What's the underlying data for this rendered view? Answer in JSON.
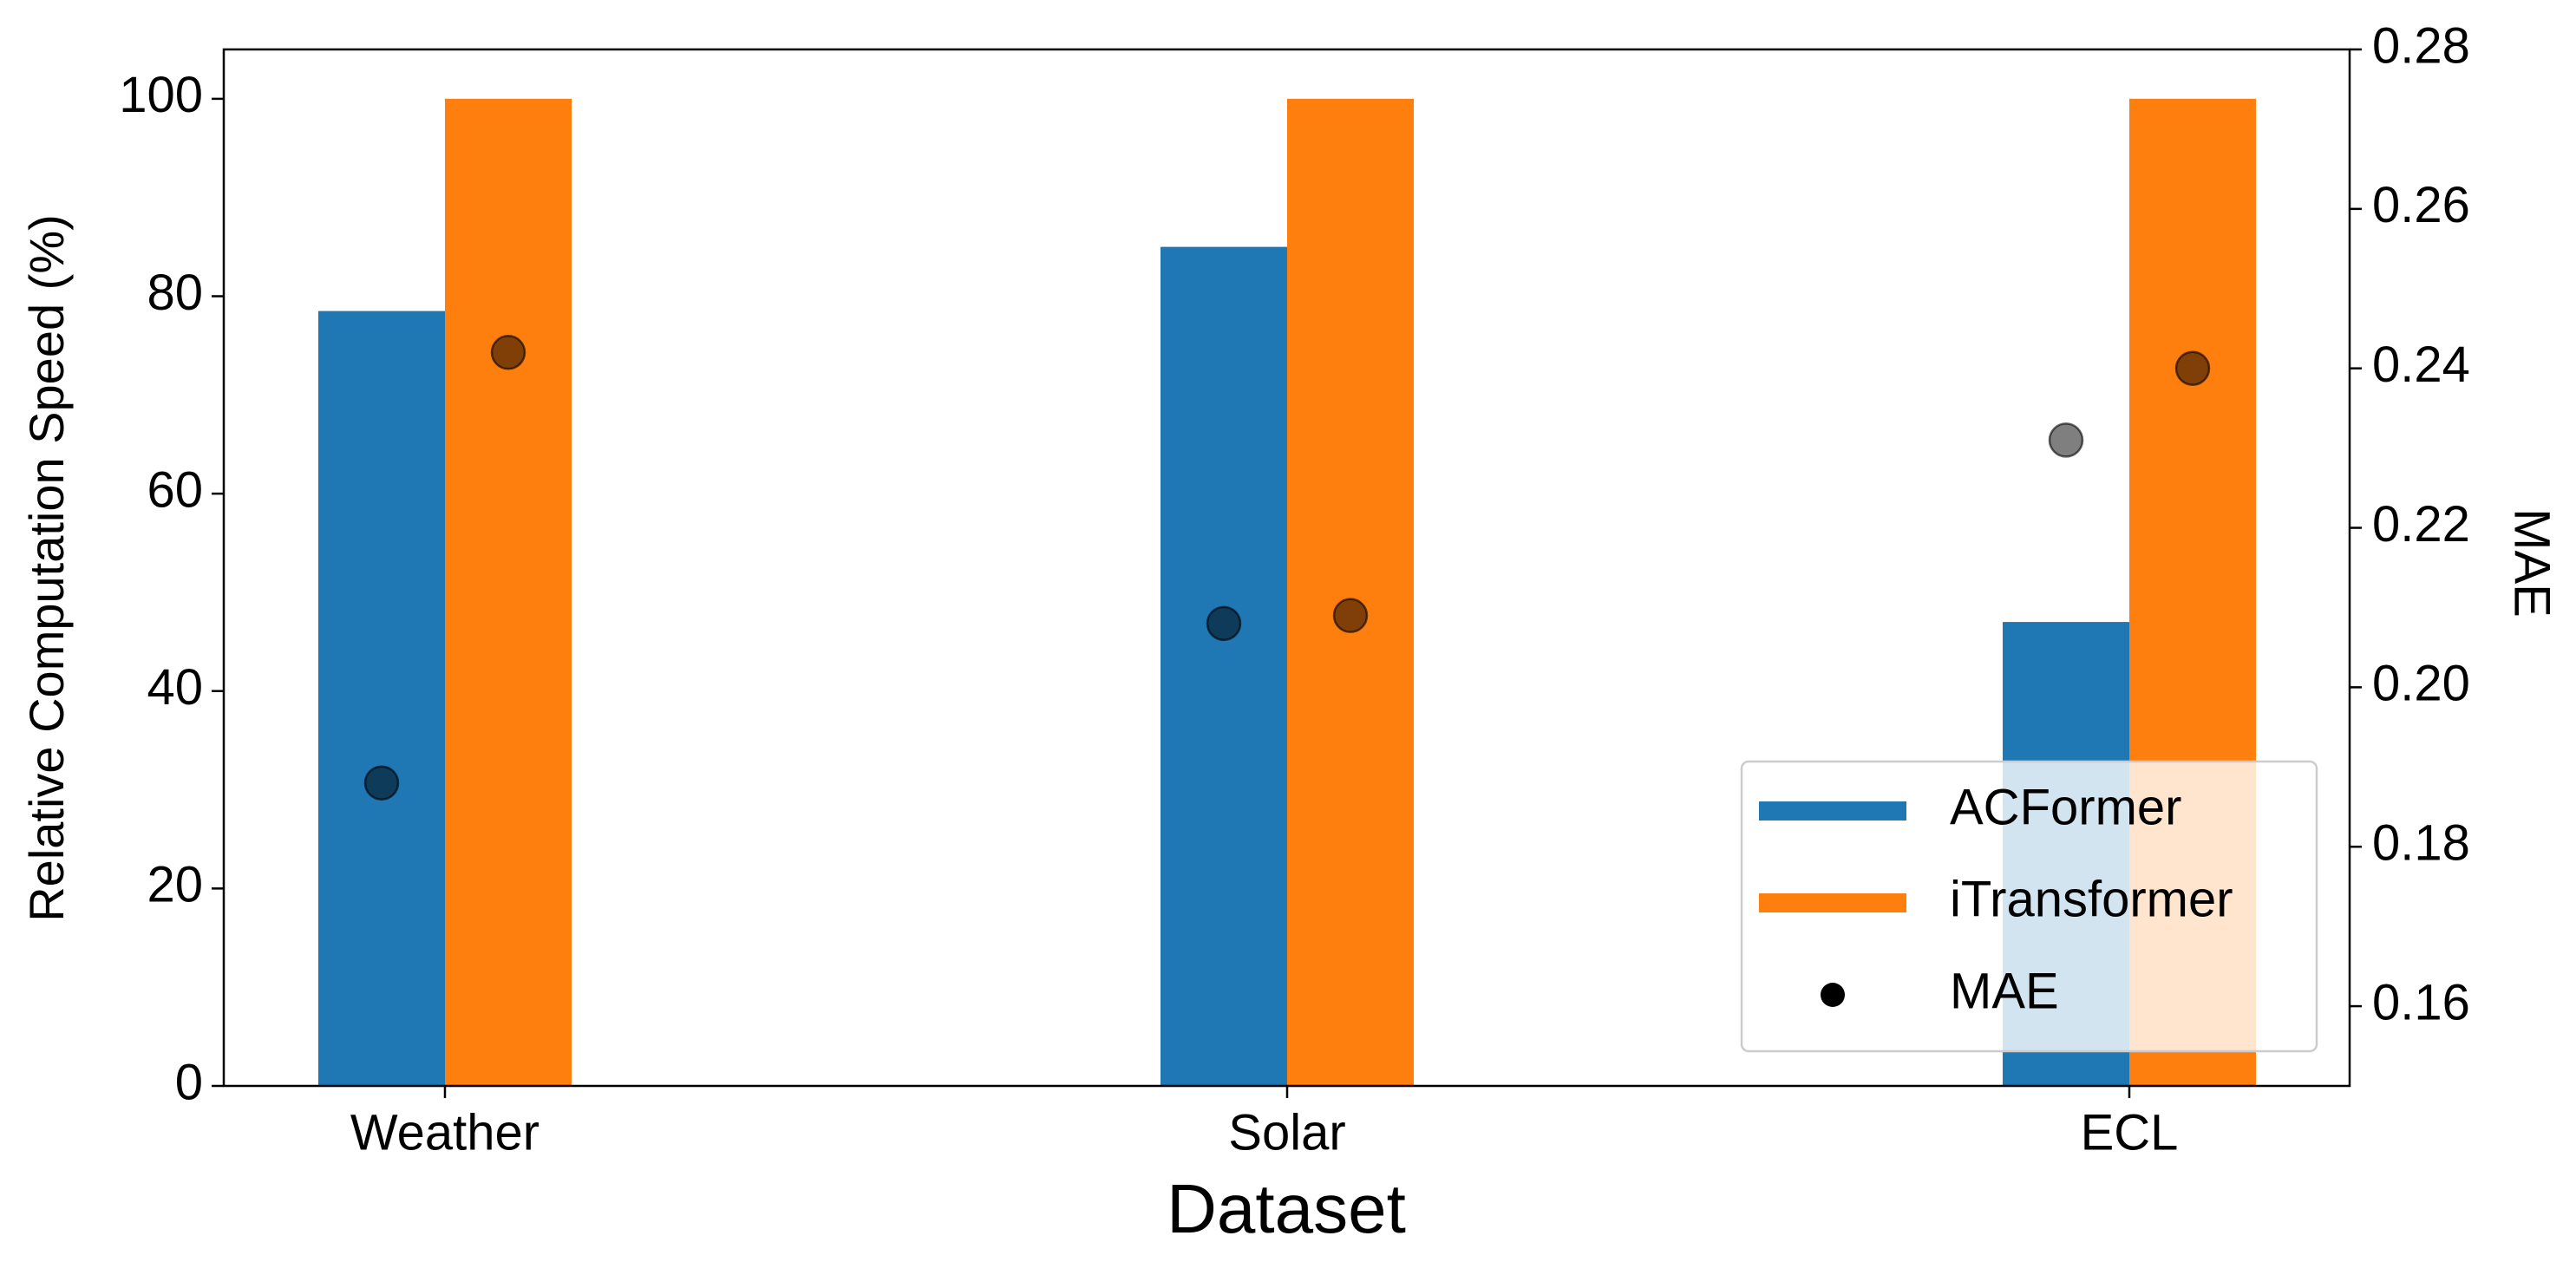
{
  "chart_data": {
    "type": "bar",
    "x_label": "Dataset",
    "y_label": "Relative Computation Speed (%)",
    "y2_label": "MAE",
    "categories": [
      "Weather",
      "Solar",
      "ECL"
    ],
    "series": [
      {
        "name": "ACFormer",
        "color": "#1f77b4",
        "values": [
          78.5,
          85,
          47
        ],
        "mae": [
          0.188,
          0.208,
          0.231
        ]
      },
      {
        "name": "iTransformer",
        "color": "#ff7f0e",
        "values": [
          100,
          100,
          100
        ],
        "mae": [
          0.242,
          0.209,
          0.24
        ]
      }
    ],
    "points": {
      "name": "MAE",
      "color": "#000000",
      "axis": "y2"
    },
    "ylim": [
      0,
      105
    ],
    "yticks": [
      0,
      20,
      40,
      60,
      80,
      100
    ],
    "y2lim": [
      0.15,
      0.28
    ],
    "y2ticks": [
      {
        "value": 0.16,
        "label": "0.16"
      },
      {
        "value": 0.18,
        "label": "0.18"
      },
      {
        "value": 0.2,
        "label": "0.20"
      },
      {
        "value": 0.22,
        "label": "0.22"
      },
      {
        "value": 0.24,
        "label": "0.24"
      },
      {
        "value": 0.26,
        "label": "0.26"
      },
      {
        "value": 0.28,
        "label": "0.28"
      }
    ],
    "legend": "lower right"
  }
}
